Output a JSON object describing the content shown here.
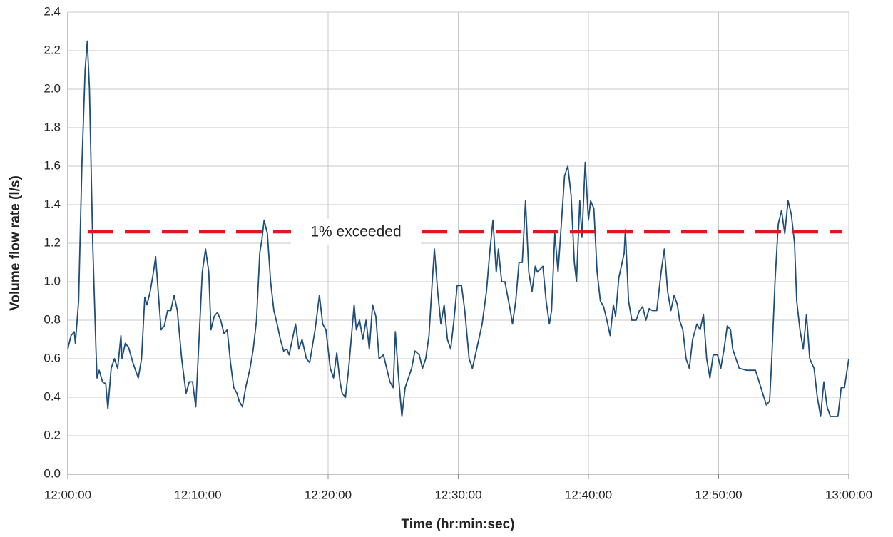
{
  "chart_data": {
    "type": "line",
    "x_label": "Time (hr:min:sec)",
    "y_label": "Volume flow rate (l/s)",
    "xlim": [
      "12:00:00",
      "13:00:00"
    ],
    "xticks": [
      "12:00:00",
      "12:10:00",
      "12:20:00",
      "12:30:00",
      "12:40:00",
      "12:50:00",
      "13:00:00"
    ],
    "ylim": [
      0,
      2.4
    ],
    "yticks": [
      {
        "value": 0,
        "label": "0.0"
      },
      0.2,
      0.4,
      0.6,
      0.8,
      {
        "value": 1,
        "label": "1.0"
      },
      1.2,
      1.4,
      1.6,
      1.8,
      {
        "value": 2,
        "label": "2.0"
      },
      2.2,
      2.4
    ],
    "grid": true,
    "reference": {
      "value": 1.26,
      "label": "1% exceeded",
      "color": "#e3171b"
    },
    "x": [
      "12:00:00",
      "12:00:15",
      "12:00:30",
      "12:00:35",
      "12:00:50",
      "12:01:05",
      "12:01:20",
      "12:01:30",
      "12:01:40",
      "12:01:55",
      "12:02:10",
      "12:02:15",
      "12:02:25",
      "12:02:40",
      "12:02:55",
      "12:03:05",
      "12:03:20",
      "12:03:35",
      "12:03:50",
      "12:04:05",
      "12:04:10",
      "12:04:25",
      "12:04:40",
      "12:05:00",
      "12:05:25",
      "12:05:40",
      "12:05:55",
      "12:06:05",
      "12:06:20",
      "12:06:35",
      "12:06:45",
      "12:07:00",
      "12:07:10",
      "12:07:25",
      "12:07:40",
      "12:07:55",
      "12:08:10",
      "12:08:25",
      "12:08:45",
      "12:09:05",
      "12:09:20",
      "12:09:35",
      "12:09:50",
      "12:10:05",
      "12:10:20",
      "12:10:35",
      "12:10:50",
      "12:11:00",
      "12:11:15",
      "12:11:30",
      "12:11:45",
      "12:12:00",
      "12:12:15",
      "12:12:30",
      "12:12:45",
      "12:13:00",
      "12:13:10",
      "12:13:25",
      "12:13:40",
      "12:14:00",
      "12:14:15",
      "12:14:30",
      "12:14:45",
      "12:14:55",
      "12:15:05",
      "12:15:20",
      "12:15:35",
      "12:15:50",
      "12:16:05",
      "12:16:20",
      "12:16:35",
      "12:16:50",
      "12:17:00",
      "12:17:15",
      "12:17:30",
      "12:17:45",
      "12:18:00",
      "12:18:20",
      "12:18:35",
      "12:19:00",
      "12:19:20",
      "12:19:35",
      "12:19:50",
      "12:20:10",
      "12:20:25",
      "12:20:40",
      "12:20:55",
      "12:21:05",
      "12:21:20",
      "12:21:35",
      "12:22:00",
      "12:22:10",
      "12:22:25",
      "12:22:40",
      "12:22:55",
      "12:23:10",
      "12:23:25",
      "12:23:40",
      "12:23:55",
      "12:24:15",
      "12:24:30",
      "12:24:45",
      "12:25:00",
      "12:25:10",
      "12:25:25",
      "12:25:40",
      "12:25:55",
      "12:26:10",
      "12:26:25",
      "12:26:40",
      "12:27:00",
      "12:27:15",
      "12:27:30",
      "12:27:45",
      "12:28:00",
      "12:28:10",
      "12:28:25",
      "12:28:40",
      "12:28:55",
      "12:29:10",
      "12:29:25",
      "12:29:40",
      "12:29:55",
      "12:30:15",
      "12:30:30",
      "12:30:50",
      "12:31:05",
      "12:31:25",
      "12:31:50",
      "12:32:10",
      "12:32:25",
      "12:32:40",
      "12:32:55",
      "12:33:05",
      "12:33:20",
      "12:33:35",
      "12:34:00",
      "12:34:10",
      "12:34:25",
      "12:34:40",
      "12:34:55",
      "12:35:10",
      "12:35:25",
      "12:35:40",
      "12:35:55",
      "12:36:05",
      "12:36:30",
      "12:36:45",
      "12:37:00",
      "12:37:10",
      "12:37:25",
      "12:37:40",
      "12:37:55",
      "12:38:10",
      "12:38:25",
      "12:38:40",
      "12:38:55",
      "12:39:05",
      "12:39:20",
      "12:39:30",
      "12:39:45",
      "12:40:00",
      "12:40:10",
      "12:40:25",
      "12:40:40",
      "12:40:55",
      "12:41:10",
      "12:41:25",
      "12:41:40",
      "12:41:55",
      "12:42:05",
      "12:42:20",
      "12:42:45",
      "12:42:50",
      "12:43:05",
      "12:43:20",
      "12:43:40",
      "12:43:55",
      "12:44:10",
      "12:44:25",
      "12:44:40",
      "12:44:55",
      "12:45:15",
      "12:45:35",
      "12:45:50",
      "12:46:05",
      "12:46:20",
      "12:46:35",
      "12:46:50",
      "12:47:00",
      "12:47:15",
      "12:47:30",
      "12:47:45",
      "12:48:00",
      "12:48:20",
      "12:48:35",
      "12:48:50",
      "12:49:05",
      "12:49:20",
      "12:49:35",
      "12:49:55",
      "12:50:10",
      "12:50:25",
      "12:50:40",
      "12:50:55",
      "12:51:05",
      "12:51:20",
      "12:51:35",
      "12:52:10",
      "12:52:50",
      "12:53:15",
      "12:53:40",
      "12:53:55",
      "12:54:05",
      "12:54:20",
      "12:54:35",
      "12:54:50",
      "12:55:05",
      "12:55:20",
      "12:55:35",
      "12:55:50",
      "12:56:00",
      "12:56:15",
      "12:56:30",
      "12:56:45",
      "12:57:00",
      "12:57:20",
      "12:57:35",
      "12:57:50",
      "12:58:05",
      "12:58:20",
      "12:58:35",
      "12:58:50",
      "12:59:10",
      "12:59:25",
      "12:59:40",
      "13:00:00"
    ],
    "series": [
      {
        "color": "#1f4e79",
        "values": [
          0.65,
          0.72,
          0.74,
          0.68,
          0.9,
          1.6,
          2.1,
          2.25,
          2.0,
          1.2,
          0.65,
          0.5,
          0.54,
          0.48,
          0.47,
          0.34,
          0.55,
          0.6,
          0.55,
          0.72,
          0.6,
          0.68,
          0.66,
          0.58,
          0.5,
          0.6,
          0.92,
          0.88,
          0.95,
          1.05,
          1.13,
          0.9,
          0.75,
          0.77,
          0.85,
          0.85,
          0.93,
          0.85,
          0.6,
          0.42,
          0.48,
          0.48,
          0.35,
          0.7,
          1.05,
          1.17,
          1.05,
          0.75,
          0.82,
          0.84,
          0.8,
          0.73,
          0.75,
          0.58,
          0.45,
          0.42,
          0.38,
          0.35,
          0.45,
          0.55,
          0.65,
          0.8,
          1.15,
          1.22,
          1.32,
          1.25,
          1.0,
          0.85,
          0.78,
          0.7,
          0.64,
          0.65,
          0.62,
          0.7,
          0.78,
          0.65,
          0.7,
          0.6,
          0.58,
          0.75,
          0.93,
          0.78,
          0.75,
          0.55,
          0.5,
          0.63,
          0.48,
          0.42,
          0.4,
          0.55,
          0.88,
          0.75,
          0.8,
          0.7,
          0.8,
          0.65,
          0.88,
          0.82,
          0.6,
          0.62,
          0.55,
          0.48,
          0.45,
          0.74,
          0.5,
          0.3,
          0.45,
          0.5,
          0.55,
          0.64,
          0.62,
          0.55,
          0.6,
          0.72,
          1.0,
          1.17,
          0.95,
          0.78,
          0.88,
          0.7,
          0.65,
          0.8,
          0.98,
          0.98,
          0.85,
          0.6,
          0.55,
          0.65,
          0.78,
          0.95,
          1.15,
          1.32,
          1.05,
          1.17,
          1.0,
          1.0,
          0.85,
          0.78,
          0.9,
          1.1,
          1.1,
          1.42,
          1.05,
          0.95,
          1.08,
          1.05,
          1.08,
          0.9,
          0.78,
          0.85,
          1.25,
          1.05,
          1.3,
          1.55,
          1.6,
          1.45,
          1.1,
          1.0,
          1.42,
          1.23,
          1.62,
          1.32,
          1.42,
          1.38,
          1.05,
          0.9,
          0.87,
          0.8,
          0.72,
          0.88,
          0.82,
          1.02,
          1.15,
          1.27,
          0.9,
          0.8,
          0.8,
          0.85,
          0.87,
          0.8,
          0.86,
          0.85,
          0.85,
          1.05,
          1.17,
          0.95,
          0.85,
          0.93,
          0.88,
          0.8,
          0.75,
          0.6,
          0.55,
          0.7,
          0.78,
          0.75,
          0.83,
          0.6,
          0.5,
          0.62,
          0.62,
          0.55,
          0.65,
          0.77,
          0.75,
          0.65,
          0.6,
          0.55,
          0.54,
          0.54,
          0.45,
          0.36,
          0.38,
          0.6,
          1.0,
          1.3,
          1.37,
          1.25,
          1.42,
          1.35,
          1.2,
          0.9,
          0.75,
          0.65,
          0.83,
          0.6,
          0.55,
          0.4,
          0.3,
          0.48,
          0.35,
          0.3,
          0.3,
          0.3,
          0.45,
          0.45,
          0.6
        ]
      }
    ]
  }
}
